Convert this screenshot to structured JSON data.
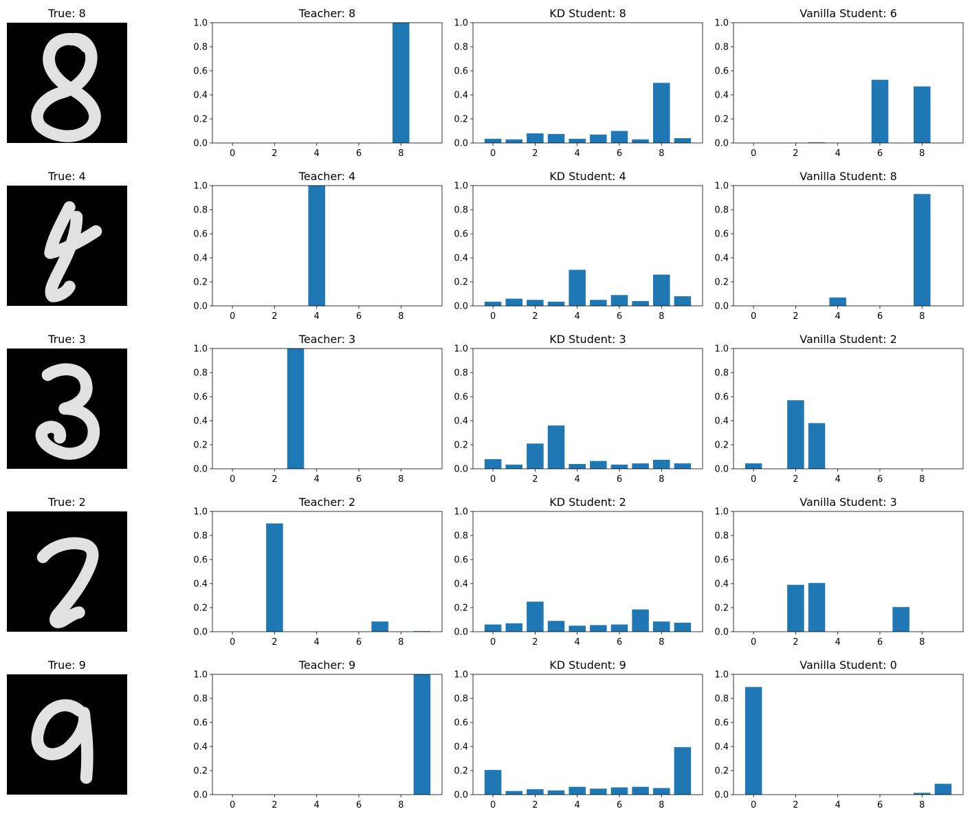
{
  "chart_data": [
    {
      "row": 1,
      "image": {
        "title": "True: 8",
        "digit": 8
      },
      "panels": [
        {
          "type": "bar",
          "title": "Teacher: 8",
          "categories": [
            0,
            1,
            2,
            3,
            4,
            5,
            6,
            7,
            8,
            9
          ],
          "values": [
            0,
            0,
            0,
            0,
            0,
            0,
            0,
            0,
            1.0,
            0
          ],
          "ylim": [
            0,
            1
          ],
          "xticks": [
            0,
            2,
            4,
            6,
            8
          ],
          "yticks": [
            0.0,
            0.2,
            0.4,
            0.6,
            0.8,
            1.0
          ]
        },
        {
          "type": "bar",
          "title": "KD Student: 8",
          "categories": [
            0,
            1,
            2,
            3,
            4,
            5,
            6,
            7,
            8,
            9
          ],
          "values": [
            0.035,
            0.03,
            0.08,
            0.075,
            0.035,
            0.07,
            0.1,
            0.03,
            0.5,
            0.04
          ],
          "ylim": [
            0,
            1
          ],
          "xticks": [
            0,
            2,
            4,
            6,
            8
          ],
          "yticks": [
            0.0,
            0.2,
            0.4,
            0.6,
            0.8,
            1.0
          ]
        },
        {
          "type": "bar",
          "title": "Vanilla Student: 6",
          "categories": [
            0,
            1,
            2,
            3,
            4,
            5,
            6,
            7,
            8,
            9
          ],
          "values": [
            0,
            0,
            0,
            0.005,
            0,
            0,
            0.525,
            0,
            0.47,
            0
          ],
          "ylim": [
            0,
            1
          ],
          "xticks": [
            0,
            2,
            4,
            6,
            8
          ],
          "yticks": [
            0.0,
            0.2,
            0.4,
            0.6,
            0.8,
            1.0
          ]
        }
      ]
    },
    {
      "row": 2,
      "image": {
        "title": "True: 4",
        "digit": 4
      },
      "panels": [
        {
          "type": "bar",
          "title": "Teacher: 4",
          "categories": [
            0,
            1,
            2,
            3,
            4,
            5,
            6,
            7,
            8,
            9
          ],
          "values": [
            0,
            0,
            0,
            0,
            1.0,
            0,
            0,
            0,
            0,
            0
          ],
          "ylim": [
            0,
            1
          ],
          "xticks": [
            0,
            2,
            4,
            6,
            8
          ],
          "yticks": [
            0.0,
            0.2,
            0.4,
            0.6,
            0.8,
            1.0
          ]
        },
        {
          "type": "bar",
          "title": "KD Student: 4",
          "categories": [
            0,
            1,
            2,
            3,
            4,
            5,
            6,
            7,
            8,
            9
          ],
          "values": [
            0.035,
            0.06,
            0.05,
            0.035,
            0.3,
            0.05,
            0.09,
            0.04,
            0.26,
            0.08
          ],
          "ylim": [
            0,
            1
          ],
          "xticks": [
            0,
            2,
            4,
            6,
            8
          ],
          "yticks": [
            0.0,
            0.2,
            0.4,
            0.6,
            0.8,
            1.0
          ]
        },
        {
          "type": "bar",
          "title": "Vanilla Student: 8",
          "categories": [
            0,
            1,
            2,
            3,
            4,
            5,
            6,
            7,
            8,
            9
          ],
          "values": [
            0,
            0,
            0,
            0,
            0.07,
            0,
            0,
            0,
            0.93,
            0
          ],
          "ylim": [
            0,
            1
          ],
          "xticks": [
            0,
            2,
            4,
            6,
            8
          ],
          "yticks": [
            0.0,
            0.2,
            0.4,
            0.6,
            0.8,
            1.0
          ]
        }
      ]
    },
    {
      "row": 3,
      "image": {
        "title": "True: 3",
        "digit": 3
      },
      "panels": [
        {
          "type": "bar",
          "title": "Teacher: 3",
          "categories": [
            0,
            1,
            2,
            3,
            4,
            5,
            6,
            7,
            8,
            9
          ],
          "values": [
            0,
            0,
            0,
            1.0,
            0,
            0,
            0,
            0,
            0,
            0
          ],
          "ylim": [
            0,
            1
          ],
          "xticks": [
            0,
            2,
            4,
            6,
            8
          ],
          "yticks": [
            0.0,
            0.2,
            0.4,
            0.6,
            0.8,
            1.0
          ]
        },
        {
          "type": "bar",
          "title": "KD Student: 3",
          "categories": [
            0,
            1,
            2,
            3,
            4,
            5,
            6,
            7,
            8,
            9
          ],
          "values": [
            0.08,
            0.035,
            0.21,
            0.36,
            0.04,
            0.065,
            0.035,
            0.045,
            0.075,
            0.045
          ],
          "ylim": [
            0,
            1
          ],
          "xticks": [
            0,
            2,
            4,
            6,
            8
          ],
          "yticks": [
            0.0,
            0.2,
            0.4,
            0.6,
            0.8,
            1.0
          ]
        },
        {
          "type": "bar",
          "title": "Vanilla Student: 2",
          "categories": [
            0,
            1,
            2,
            3,
            4,
            5,
            6,
            7,
            8,
            9
          ],
          "values": [
            0.045,
            0,
            0.57,
            0.38,
            0,
            0,
            0,
            0,
            0,
            0
          ],
          "ylim": [
            0,
            1
          ],
          "xticks": [
            0,
            2,
            4,
            6,
            8
          ],
          "yticks": [
            0.0,
            0.2,
            0.4,
            0.6,
            0.8,
            1.0
          ]
        }
      ]
    },
    {
      "row": 4,
      "image": {
        "title": "True: 2",
        "digit": 2
      },
      "panels": [
        {
          "type": "bar",
          "title": "Teacher: 2",
          "categories": [
            0,
            1,
            2,
            3,
            4,
            5,
            6,
            7,
            8,
            9
          ],
          "values": [
            0,
            0,
            0.9,
            0,
            0,
            0,
            0,
            0.085,
            0,
            0.005
          ],
          "ylim": [
            0,
            1
          ],
          "xticks": [
            0,
            2,
            4,
            6,
            8
          ],
          "yticks": [
            0.0,
            0.2,
            0.4,
            0.6,
            0.8,
            1.0
          ]
        },
        {
          "type": "bar",
          "title": "KD Student: 2",
          "categories": [
            0,
            1,
            2,
            3,
            4,
            5,
            6,
            7,
            8,
            9
          ],
          "values": [
            0.06,
            0.07,
            0.25,
            0.09,
            0.05,
            0.055,
            0.06,
            0.185,
            0.085,
            0.075
          ],
          "ylim": [
            0,
            1
          ],
          "xticks": [
            0,
            2,
            4,
            6,
            8
          ],
          "yticks": [
            0.0,
            0.2,
            0.4,
            0.6,
            0.8,
            1.0
          ]
        },
        {
          "type": "bar",
          "title": "Vanilla Student: 3",
          "categories": [
            0,
            1,
            2,
            3,
            4,
            5,
            6,
            7,
            8,
            9
          ],
          "values": [
            0,
            0,
            0.39,
            0.405,
            0,
            0,
            0,
            0.205,
            0,
            0
          ],
          "ylim": [
            0,
            1
          ],
          "xticks": [
            0,
            2,
            4,
            6,
            8
          ],
          "yticks": [
            0.0,
            0.2,
            0.4,
            0.6,
            0.8,
            1.0
          ]
        }
      ]
    },
    {
      "row": 5,
      "image": {
        "title": "True: 9",
        "digit": 9
      },
      "panels": [
        {
          "type": "bar",
          "title": "Teacher: 9",
          "categories": [
            0,
            1,
            2,
            3,
            4,
            5,
            6,
            7,
            8,
            9
          ],
          "values": [
            0,
            0,
            0,
            0,
            0,
            0,
            0,
            0,
            0,
            1.0
          ],
          "ylim": [
            0,
            1
          ],
          "xticks": [
            0,
            2,
            4,
            6,
            8
          ],
          "yticks": [
            0.0,
            0.2,
            0.4,
            0.6,
            0.8,
            1.0
          ]
        },
        {
          "type": "bar",
          "title": "KD Student: 9",
          "categories": [
            0,
            1,
            2,
            3,
            4,
            5,
            6,
            7,
            8,
            9
          ],
          "values": [
            0.205,
            0.03,
            0.045,
            0.035,
            0.065,
            0.05,
            0.06,
            0.065,
            0.055,
            0.395
          ],
          "ylim": [
            0,
            1
          ],
          "xticks": [
            0,
            2,
            4,
            6,
            8
          ],
          "yticks": [
            0.0,
            0.2,
            0.4,
            0.6,
            0.8,
            1.0
          ]
        },
        {
          "type": "bar",
          "title": "Vanilla Student: 0",
          "categories": [
            0,
            1,
            2,
            3,
            4,
            5,
            6,
            7,
            8,
            9
          ],
          "values": [
            0.895,
            0,
            0,
            0,
            0,
            0,
            0,
            0,
            0.015,
            0.09
          ],
          "ylim": [
            0,
            1
          ],
          "xticks": [
            0,
            2,
            4,
            6,
            8
          ],
          "yticks": [
            0.0,
            0.2,
            0.4,
            0.6,
            0.8,
            1.0
          ]
        }
      ]
    }
  ],
  "colors": {
    "bar": "#1f77b4",
    "axis": "#000000",
    "image_bg": "#000000",
    "stroke": "#ededed"
  }
}
